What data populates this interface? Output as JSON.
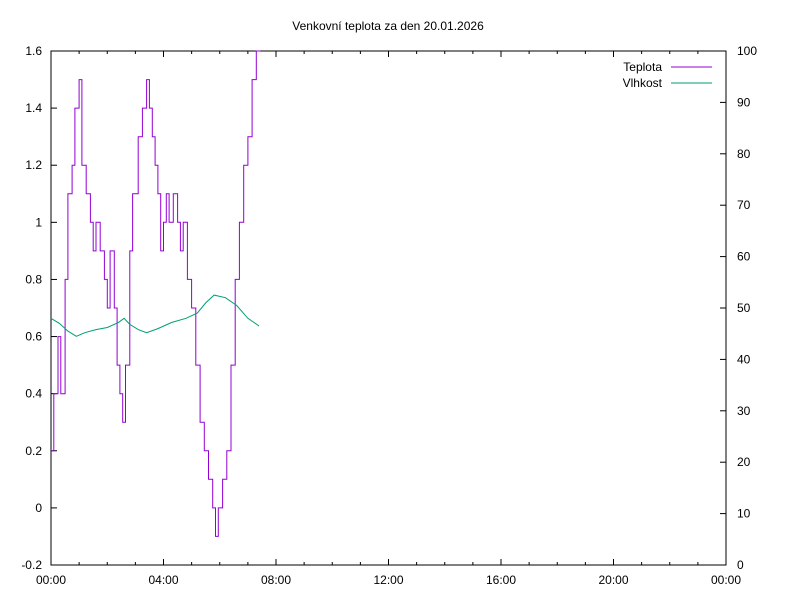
{
  "chart_data": {
    "type": "line",
    "title": "Venkovní teplota za den 20.01.2026",
    "x_ticks": [
      "00:00",
      "04:00",
      "08:00",
      "12:00",
      "16:00",
      "20:00",
      "00:00"
    ],
    "x_range_hours": [
      0,
      24
    ],
    "y_left": {
      "ticks": [
        "-0.2",
        "0",
        "0.2",
        "0.4",
        "0.6",
        "0.8",
        "1",
        "1.2",
        "1.4",
        "1.6"
      ],
      "range": [
        -0.2,
        1.6
      ]
    },
    "y_right": {
      "ticks": [
        "0",
        "10",
        "20",
        "30",
        "40",
        "50",
        "60",
        "70",
        "80",
        "90",
        "100"
      ],
      "range": [
        0,
        100
      ]
    },
    "legend_position": "top-right",
    "series": [
      {
        "name": "Teplota",
        "axis": "left",
        "color": "#9400d3",
        "points": [
          [
            0.0,
            0.2
          ],
          [
            0.1,
            0.4
          ],
          [
            0.25,
            0.6
          ],
          [
            0.35,
            0.4
          ],
          [
            0.5,
            0.8
          ],
          [
            0.6,
            1.1
          ],
          [
            0.75,
            1.2
          ],
          [
            0.85,
            1.4
          ],
          [
            1.0,
            1.5
          ],
          [
            1.1,
            1.2
          ],
          [
            1.25,
            1.1
          ],
          [
            1.4,
            1.0
          ],
          [
            1.5,
            0.9
          ],
          [
            1.6,
            1.0
          ],
          [
            1.75,
            0.9
          ],
          [
            1.9,
            0.8
          ],
          [
            2.0,
            0.7
          ],
          [
            2.1,
            0.9
          ],
          [
            2.25,
            0.7
          ],
          [
            2.35,
            0.5
          ],
          [
            2.45,
            0.4
          ],
          [
            2.55,
            0.3
          ],
          [
            2.65,
            0.5
          ],
          [
            2.8,
            0.9
          ],
          [
            2.9,
            1.1
          ],
          [
            3.1,
            1.3
          ],
          [
            3.25,
            1.4
          ],
          [
            3.4,
            1.5
          ],
          [
            3.5,
            1.4
          ],
          [
            3.6,
            1.3
          ],
          [
            3.7,
            1.2
          ],
          [
            3.8,
            1.1
          ],
          [
            3.9,
            0.9
          ],
          [
            4.0,
            1.0
          ],
          [
            4.1,
            1.1
          ],
          [
            4.2,
            1.0
          ],
          [
            4.35,
            1.1
          ],
          [
            4.5,
            1.0
          ],
          [
            4.6,
            0.9
          ],
          [
            4.7,
            1.0
          ],
          [
            4.85,
            0.8
          ],
          [
            5.0,
            0.7
          ],
          [
            5.15,
            0.5
          ],
          [
            5.3,
            0.3
          ],
          [
            5.45,
            0.2
          ],
          [
            5.6,
            0.1
          ],
          [
            5.75,
            0.0
          ],
          [
            5.85,
            -0.1
          ],
          [
            5.95,
            0.0
          ],
          [
            6.1,
            0.1
          ],
          [
            6.25,
            0.2
          ],
          [
            6.4,
            0.5
          ],
          [
            6.55,
            0.8
          ],
          [
            6.7,
            1.0
          ],
          [
            6.85,
            1.2
          ],
          [
            7.0,
            1.3
          ],
          [
            7.15,
            1.5
          ],
          [
            7.3,
            1.6
          ],
          [
            7.45,
            1.6
          ]
        ]
      },
      {
        "name": "Vlhkost",
        "axis": "right",
        "color": "#009e73",
        "points": [
          [
            0.0,
            48
          ],
          [
            0.3,
            47
          ],
          [
            0.6,
            45.5
          ],
          [
            0.9,
            44.5
          ],
          [
            1.2,
            45.2
          ],
          [
            1.6,
            45.8
          ],
          [
            2.0,
            46.2
          ],
          [
            2.4,
            47.2
          ],
          [
            2.6,
            48
          ],
          [
            2.8,
            46.8
          ],
          [
            3.1,
            45.8
          ],
          [
            3.4,
            45.2
          ],
          [
            3.8,
            46.0
          ],
          [
            4.3,
            47.2
          ],
          [
            4.8,
            48.0
          ],
          [
            5.2,
            49.0
          ],
          [
            5.5,
            51.0
          ],
          [
            5.8,
            52.5
          ],
          [
            6.2,
            52.0
          ],
          [
            6.6,
            50.5
          ],
          [
            7.0,
            48.0
          ],
          [
            7.4,
            46.5
          ]
        ]
      }
    ]
  }
}
